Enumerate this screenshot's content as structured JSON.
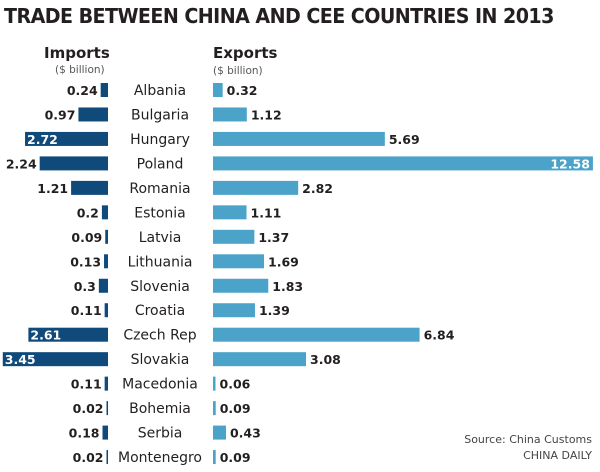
{
  "chart_data": {
    "type": "bar",
    "orientation": "horizontal-butterfly",
    "title": "TRADE BETWEEN CHINA AND CEE COUNTRIES IN 2013",
    "categories": [
      "Albania",
      "Bulgaria",
      "Hungary",
      "Poland",
      "Romania",
      "Estonia",
      "Latvia",
      "Lithuania",
      "Slovenia",
      "Croatia",
      "Czech Rep",
      "Slovakia",
      "Macedonia",
      "Bohemia",
      "Serbia",
      "Montenegro"
    ],
    "series": [
      {
        "name": "Imports",
        "unit": "($ billion)",
        "color": "#0f4a7b",
        "values": [
          0.24,
          0.97,
          2.72,
          2.24,
          1.21,
          0.2,
          0.09,
          0.13,
          0.3,
          0.11,
          2.61,
          3.45,
          0.11,
          0.02,
          0.18,
          0.02
        ],
        "labels": [
          "0.24",
          "0.97",
          "2.72",
          "2.24",
          "1.21",
          "0.2",
          "0.09",
          "0.13",
          "0.3",
          "0.11",
          "2.61",
          "3.45",
          "0.11",
          "0.02",
          "0.18",
          "0.02"
        ]
      },
      {
        "name": "Exports",
        "unit": "($ billion)",
        "color": "#4ba3c9",
        "values": [
          0.32,
          1.12,
          5.69,
          12.58,
          2.82,
          1.11,
          1.37,
          1.69,
          1.83,
          1.39,
          6.84,
          3.08,
          0.06,
          0.09,
          0.43,
          0.09
        ],
        "labels": [
          "0.32",
          "1.12",
          "5.69",
          "12.58",
          "2.82",
          "1.11",
          "1.37",
          "1.69",
          "1.83",
          "1.39",
          "6.84",
          "3.08",
          "0.06",
          "0.09",
          "0.43",
          "0.09"
        ]
      }
    ],
    "grid": false,
    "legend": "none"
  },
  "source": "Source: China Customs",
  "credit": "CHINA DAILY"
}
